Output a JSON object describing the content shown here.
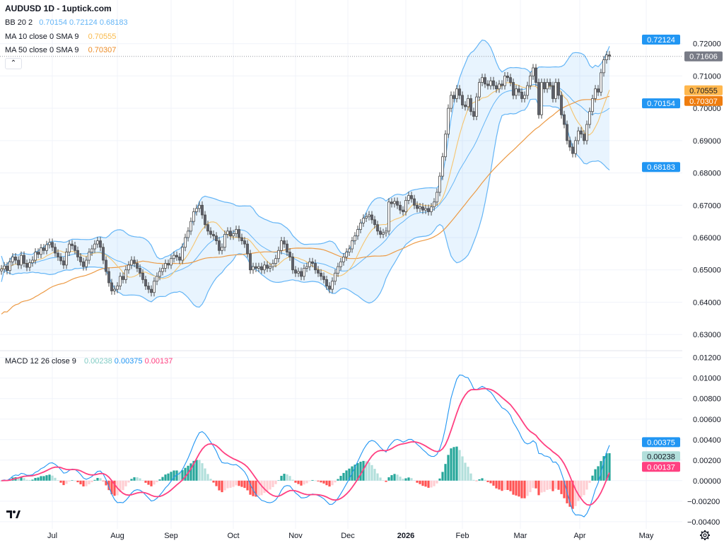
{
  "header": {
    "title": "AUDUSD 1D - 1uptick.com",
    "bb": {
      "label": "BB 20 2",
      "basis": "0.70154",
      "upper": "0.72124",
      "lower": "0.68183",
      "color": "#64b5f6"
    },
    "ma10": {
      "label": "MA 10 close 0 SMA 9",
      "value": "0.70555",
      "color": "#f9b94a"
    },
    "ma50": {
      "label": "MA 50 close 0 SMA 9",
      "value": "0.70307",
      "color": "#ec8d28"
    },
    "macd": {
      "label": "MACD 12 26 close 9",
      "histogram": "0.00238",
      "macd": "0.00375",
      "signal": "0.00137"
    },
    "collapse_icon": "chevron-up-icon"
  },
  "chart_data": [
    {
      "type": "candlestick",
      "symbol": "AUDUSD",
      "interval": "1D",
      "ylim": [
        0.625,
        0.7335
      ],
      "y_ticks": [
        "0.72000",
        "0.71000",
        "0.70000",
        "0.69000",
        "0.68000",
        "0.67000",
        "0.66000",
        "0.65000",
        "0.64000",
        "0.63000"
      ],
      "x_ticks": [
        {
          "label": "Jul",
          "bar": 18
        },
        {
          "label": "Aug",
          "bar": 41
        },
        {
          "label": "Sep",
          "bar": 60
        },
        {
          "label": "Oct",
          "bar": 82
        },
        {
          "label": "Nov",
          "bar": 104
        },
        {
          "label": "Dec",
          "bar": 122.5
        },
        {
          "label": "2026",
          "bar": 143
        },
        {
          "label": "Feb",
          "bar": 163
        },
        {
          "label": "Mar",
          "bar": 183.5
        },
        {
          "label": "Apr",
          "bar": 204.5
        },
        {
          "label": "May",
          "bar": 228
        }
      ],
      "close": [
        0.6503,
        0.6512,
        0.6498,
        0.6525,
        0.654,
        0.653,
        0.6515,
        0.6545,
        0.652,
        0.6508,
        0.6522,
        0.653,
        0.6555,
        0.6548,
        0.6568,
        0.656,
        0.6578,
        0.6585,
        0.657,
        0.6552,
        0.654,
        0.6528,
        0.6515,
        0.6555,
        0.658,
        0.6575,
        0.656,
        0.654,
        0.6525,
        0.651,
        0.653,
        0.6555,
        0.6565,
        0.658,
        0.659,
        0.657,
        0.653,
        0.6495,
        0.646,
        0.6435,
        0.644,
        0.645,
        0.648,
        0.647,
        0.65,
        0.6515,
        0.653,
        0.652,
        0.6505,
        0.649,
        0.647,
        0.645,
        0.644,
        0.643,
        0.6465,
        0.648,
        0.6495,
        0.6505,
        0.652,
        0.6515,
        0.6535,
        0.6545,
        0.654,
        0.653,
        0.657,
        0.66,
        0.662,
        0.665,
        0.668,
        0.669,
        0.67,
        0.667,
        0.664,
        0.662,
        0.661,
        0.6605,
        0.659,
        0.656,
        0.657,
        0.661,
        0.662,
        0.6605,
        0.6612,
        0.6625,
        0.66,
        0.659,
        0.658,
        0.655,
        0.65,
        0.651,
        0.6505,
        0.651,
        0.65,
        0.6515,
        0.6505,
        0.651,
        0.652,
        0.6535,
        0.656,
        0.659,
        0.658,
        0.6555,
        0.654,
        0.65,
        0.649,
        0.6495,
        0.648,
        0.6505,
        0.651,
        0.6525,
        0.652,
        0.65,
        0.649,
        0.648,
        0.647,
        0.645,
        0.644,
        0.6465,
        0.649,
        0.651,
        0.6525,
        0.654,
        0.6555,
        0.6565,
        0.659,
        0.6605,
        0.6625,
        0.6645,
        0.666,
        0.6665,
        0.667,
        0.6655,
        0.664,
        0.662,
        0.661,
        0.6615,
        0.662,
        0.671,
        0.6705,
        0.6712,
        0.67,
        0.6685,
        0.668,
        0.6715,
        0.673,
        0.672,
        0.67,
        0.669,
        0.6695,
        0.6685,
        0.669,
        0.668,
        0.6695,
        0.671,
        0.674,
        0.679,
        0.685,
        0.692,
        0.7,
        0.704,
        0.703,
        0.706,
        0.704,
        0.701,
        0.7005,
        0.703,
        0.699,
        0.6975,
        0.7035,
        0.708,
        0.7095,
        0.7075,
        0.707,
        0.7085,
        0.707,
        0.706,
        0.7075,
        0.707,
        0.71,
        0.7095,
        0.708,
        0.704,
        0.706,
        0.705,
        0.703,
        0.704,
        0.707,
        0.71,
        0.7125,
        0.708,
        0.698,
        0.708,
        0.706,
        0.708,
        0.707,
        0.703,
        0.708,
        0.704,
        0.698,
        0.695,
        0.69,
        0.688,
        0.686,
        0.69,
        0.693,
        0.692,
        0.69,
        0.695,
        0.699,
        0.703,
        0.706,
        0.705,
        0.711,
        0.715,
        0.7165,
        0.7161
      ],
      "last_price": "0.71606",
      "price_badges": [
        {
          "value": "0.72124",
          "color": "#2196f3",
          "text_color": "#ffffff"
        },
        {
          "value": "0.71606",
          "color": "#787b86",
          "text_color": "#ffffff"
        },
        {
          "value": "0.70555",
          "color": "#ffb74d",
          "text_color": "#131722"
        },
        {
          "value": "0.70307",
          "color": "#ef7d0f",
          "text_color": "#ffffff"
        },
        {
          "value": "0.70154",
          "color": "#2196f3",
          "text_color": "#ffffff"
        },
        {
          "value": "0.68183",
          "color": "#2196f3",
          "text_color": "#ffffff"
        }
      ],
      "indicators": {
        "bollinger": {
          "length": 20,
          "mult": 2
        },
        "sma_fast": 10,
        "sma_slow": 50
      },
      "colors": {
        "up_body": "#ffffff",
        "down_body": "#5d606b",
        "wick": "#4a4a4a",
        "bb": "#64b5f6",
        "bb_fill": "rgba(33,150,243,0.10)",
        "ma10": "#f5c46f",
        "ma50": "#ec9a45"
      }
    },
    {
      "type": "macd",
      "fast": 12,
      "slow": 26,
      "signal": 9,
      "ylim": [
        -0.0047,
        0.0126
      ],
      "y_ticks": [
        "0.01200",
        "0.01000",
        "0.00800",
        "0.00600",
        "0.00400",
        "0.00200",
        "0.00000",
        "−0.00200",
        "−0.00400"
      ],
      "badges": [
        {
          "value": "0.00375",
          "color": "#2196f3",
          "text_color": "#ffffff"
        },
        {
          "value": "0.00238",
          "color": "#b2dfdb",
          "text_color": "#131722"
        },
        {
          "value": "0.00137",
          "color": "#ff4081",
          "text_color": "#ffffff"
        }
      ],
      "colors": {
        "macd": "#2196f3",
        "signal": "#ff4081",
        "hist_up_strong": "#26a69a",
        "hist_up_weak": "#b2dfdb",
        "hist_down_strong": "#ff5252",
        "hist_down_weak": "#ffcdd2"
      }
    }
  ]
}
